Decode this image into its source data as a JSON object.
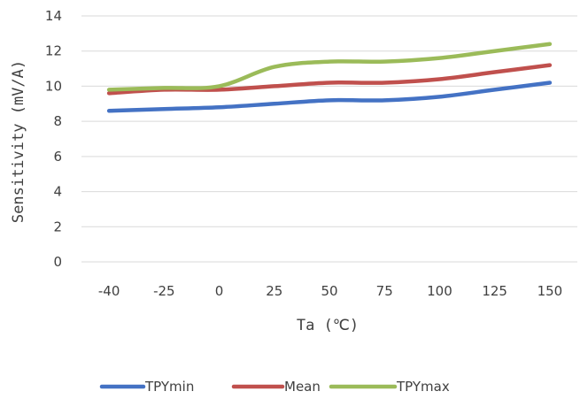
{
  "chart_data": {
    "type": "line",
    "title": "",
    "xlabel": "Ta (℃)",
    "ylabel": "Sensitivity (mV/A)",
    "categories": [
      "-40",
      "-25",
      "0",
      "25",
      "50",
      "75",
      "100",
      "125",
      "150"
    ],
    "ylim": [
      0,
      14
    ],
    "yticks": [
      0,
      2,
      4,
      6,
      8,
      10,
      12,
      14
    ],
    "grid": true,
    "legend": "bottom",
    "smooth": true,
    "series": [
      {
        "name": "TPYmin",
        "color": "#4472C4",
        "values": [
          8.6,
          8.7,
          8.8,
          9.0,
          9.2,
          9.2,
          9.4,
          9.8,
          10.2
        ]
      },
      {
        "name": "Mean",
        "color": "#C0504D",
        "values": [
          9.6,
          9.8,
          9.8,
          10.0,
          10.2,
          10.2,
          10.4,
          10.8,
          11.2
        ]
      },
      {
        "name": "TPYmax",
        "color": "#9BBB59",
        "values": [
          9.8,
          9.9,
          10.0,
          11.1,
          11.4,
          11.4,
          11.6,
          12.0,
          12.4
        ]
      }
    ]
  }
}
